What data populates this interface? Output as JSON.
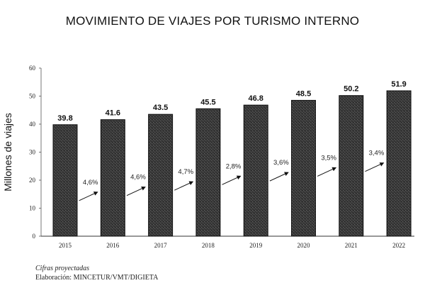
{
  "title": "MOVIMIENTO DE VIAJES POR TURISMO INTERNO",
  "footer": {
    "note": "Cifras proyectadas",
    "source": "Elaboración: MINCETUR/VMT/DIGIETA"
  },
  "chart_data": {
    "type": "bar",
    "title": "MOVIMIENTO DE VIAJES POR TURISMO INTERNO",
    "xlabel": "",
    "ylabel": "Millones de viajes",
    "ylim": [
      0,
      60
    ],
    "yticks": [
      0,
      10,
      20,
      30,
      40,
      50,
      60
    ],
    "categories": [
      "2015",
      "2016",
      "2017",
      "2018",
      "2019",
      "2020",
      "2021",
      "2022"
    ],
    "values": [
      39.8,
      41.6,
      43.5,
      45.5,
      46.8,
      48.5,
      50.2,
      51.9
    ],
    "value_labels": [
      "39.8",
      "41.6",
      "43.5",
      "45.5",
      "46.8",
      "48.5",
      "50.2",
      "51.9"
    ],
    "growth_labels": [
      "4,6%",
      "4,6%",
      "4,7%",
      "2,8%",
      "3,6%",
      "3,5%",
      "3,4%"
    ],
    "grid": false,
    "legend": "none",
    "bar_color": "#3a3a3a"
  }
}
